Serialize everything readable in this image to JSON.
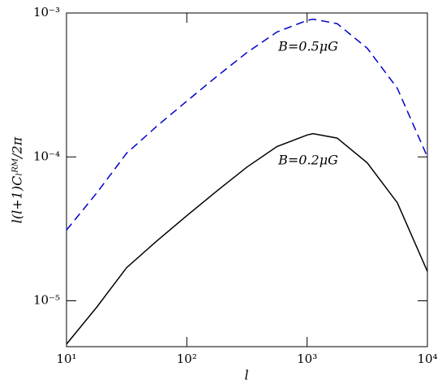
{
  "chart_data": {
    "type": "line",
    "x_label": "l",
    "y_label": "l(l+1)Cₗᴿᴹ/2π",
    "log_x": true,
    "log_y": true,
    "xlim": [
      10,
      10000
    ],
    "ylim": [
      4.8e-06,
      0.001
    ],
    "xticks": [
      {
        "value": 10,
        "label": "10¹"
      },
      {
        "value": 100,
        "label": "10²"
      },
      {
        "value": 1000,
        "label": "10³"
      },
      {
        "value": 10000,
        "label": "10⁴"
      }
    ],
    "yticks": [
      {
        "value": 1e-05,
        "label": "10⁻⁵"
      },
      {
        "value": 0.0001,
        "label": "10⁻⁴"
      },
      {
        "value": 0.001,
        "label": "10⁻³"
      }
    ],
    "x": [
      10,
      17.8,
      31.6,
      56.2,
      100,
      178,
      316,
      562,
      1000,
      1122,
      1778,
      3162,
      5623,
      10000
    ],
    "series": [
      {
        "name": "B=0.5μG",
        "color": "#0000cc",
        "dash": true,
        "values": [
          3.1e-05,
          5.6e-05,
          0.000106,
          0.000163,
          0.000244,
          0.000363,
          0.000531,
          0.000738,
          0.000888,
          0.000906,
          0.000844,
          0.000569,
          0.0003,
          0.0001
        ]
      },
      {
        "name": "B=0.2μG",
        "color": "#000000",
        "dash": false,
        "values": [
          5e-06,
          9e-06,
          1.7e-05,
          2.6e-05,
          3.9e-05,
          5.8e-05,
          8.5e-05,
          0.000118,
          0.000142,
          0.000145,
          0.000135,
          9.1e-05,
          4.8e-05,
          1.6e-05
        ]
      }
    ]
  }
}
